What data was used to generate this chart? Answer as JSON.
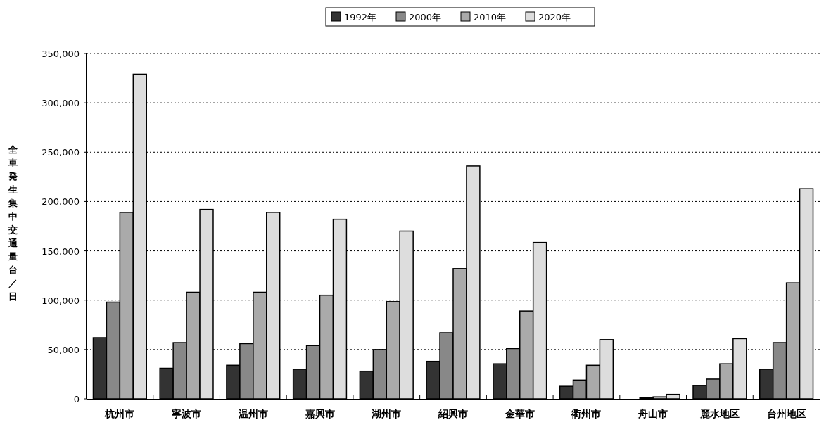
{
  "chart_data": {
    "type": "bar",
    "ylabel": "全車発生集中交通量台／日",
    "categories": [
      "杭州市",
      "寧波市",
      "温州市",
      "嘉興市",
      "湖州市",
      "紹興市",
      "金華市",
      "衢州市",
      "舟山市",
      "麗水地区",
      "台州地区"
    ],
    "series": [
      {
        "name": "1992年",
        "color": "#333333",
        "values": [
          62000,
          31000,
          34000,
          30000,
          28000,
          38000,
          35500,
          12700,
          0,
          13500,
          30000
        ]
      },
      {
        "name": "2000年",
        "color": "#888888",
        "values": [
          98000,
          57000,
          56000,
          54000,
          50000,
          67000,
          51000,
          19000,
          1000,
          20000,
          57000
        ]
      },
      {
        "name": "2010年",
        "color": "#aaaaaa",
        "values": [
          189000,
          108000,
          108000,
          105000,
          98500,
          132000,
          89000,
          34000,
          2000,
          35500,
          117500
        ]
      },
      {
        "name": "2020年",
        "color": "#dddddd",
        "values": [
          329000,
          192000,
          189000,
          182000,
          170000,
          236000,
          158500,
          60000,
          4500,
          61000,
          213000
        ]
      }
    ],
    "ylim": [
      0,
      350000
    ],
    "yticks": [
      {
        "value": 0,
        "label": "0"
      },
      {
        "value": 50000,
        "label": "50,000"
      },
      {
        "value": 100000,
        "label": "100,000"
      },
      {
        "value": 150000,
        "label": "150,000"
      },
      {
        "value": 200000,
        "label": "200,000"
      },
      {
        "value": 250000,
        "label": "250,000"
      },
      {
        "value": 300000,
        "label": "300,000"
      },
      {
        "value": 350000,
        "label": "350,000"
      }
    ],
    "grid": "y",
    "legend": "top"
  }
}
